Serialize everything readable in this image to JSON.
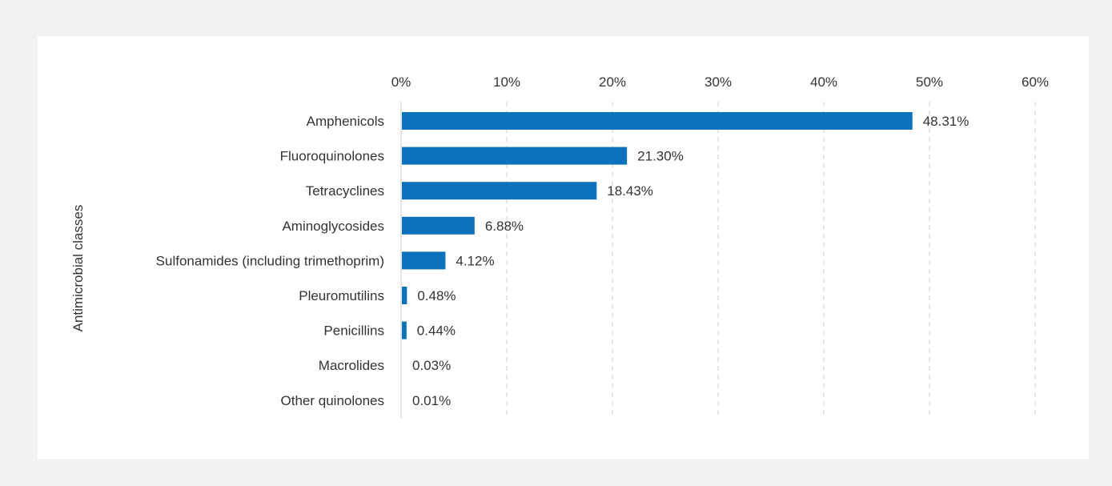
{
  "chart_data": {
    "type": "bar",
    "orientation": "horizontal",
    "title": "",
    "xlabel": "",
    "ylabel": "Antimicrobial classes",
    "xlim": [
      0,
      60
    ],
    "x_ticks": [
      "0%",
      "10%",
      "20%",
      "30%",
      "40%",
      "50%",
      "60%"
    ],
    "x_axis_position": "top",
    "grid": "vertical dashed",
    "legend": "none",
    "bar_color": "#0b72bd",
    "categories": [
      "Amphenicols",
      "Fluoroquinolones",
      "Tetracyclines",
      "Aminoglycosides",
      "Sulfonamides (including trimethoprim)",
      "Pleuromutilins",
      "Penicillins",
      "Macrolides",
      "Other quinolones"
    ],
    "values": [
      48.31,
      21.3,
      18.43,
      6.88,
      4.12,
      0.48,
      0.44,
      0.03,
      0.01
    ],
    "value_labels": [
      "48.31%",
      "21.30%",
      "18.43%",
      "6.88%",
      "4.12%",
      "0.48%",
      "0.44%",
      "0.03%",
      "0.01%"
    ]
  }
}
